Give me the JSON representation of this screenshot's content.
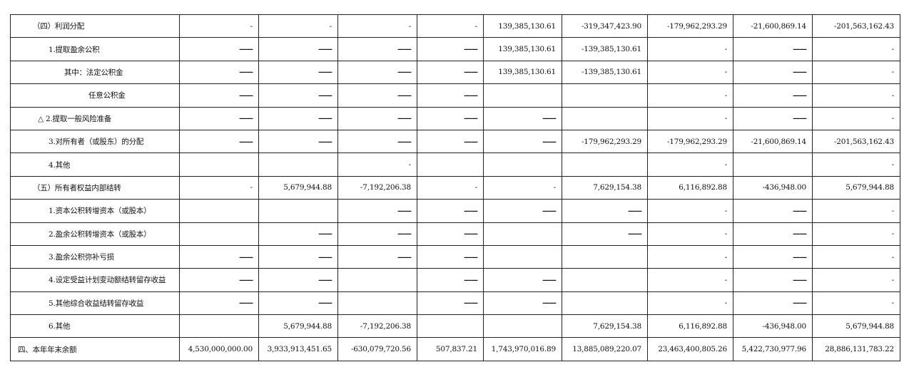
{
  "rows": [
    {
      "label": "（四）利润分配",
      "indent": "i5",
      "cells": [
        "-",
        "-",
        "-",
        "-",
        "139,385,130.61",
        "-319,347,423.90",
        "-179,962,293.29",
        "-21,600,869.14",
        "-201,563,162.43"
      ]
    },
    {
      "label": "1.提取盈余公积",
      "indent": "i1",
      "cells": [
        "——",
        "——",
        "——",
        "——",
        "139,385,130.61",
        "-139,385,130.61",
        "-",
        "——",
        "-"
      ]
    },
    {
      "label": "其中：法定公积金",
      "indent": "i2",
      "cells": [
        "——",
        "——",
        "——",
        "——",
        "139,385,130.61",
        "-139,385,130.61",
        "-",
        "——",
        "-"
      ]
    },
    {
      "label": "任意公积金",
      "indent": "i4",
      "cells": [
        "——",
        "——",
        "——",
        "——",
        "",
        "",
        "-",
        "——",
        "-"
      ]
    },
    {
      "label": "△ 2.提取一般风险准备",
      "indent": "i5b",
      "cells": [
        "——",
        "——",
        "——",
        "——",
        "——",
        "",
        "-",
        "——",
        "-"
      ]
    },
    {
      "label": "3.对所有者（或股东）的分配",
      "indent": "i1",
      "cells": [
        "——",
        "——",
        "——",
        "——",
        "——",
        "-179,962,293.29",
        "-179,962,293.29",
        "-21,600,869.14",
        "-201,563,162.43"
      ]
    },
    {
      "label": "4.其他",
      "indent": "i1",
      "cells": [
        "",
        "",
        "-",
        "",
        "",
        "",
        "-",
        "",
        "-"
      ]
    },
    {
      "label": "（五）所有者权益内部结转",
      "indent": "i5",
      "cells": [
        "-",
        "5,679,944.88",
        "-7,192,206.38",
        "-",
        "-",
        "7,629,154.38",
        "6,116,892.88",
        "-436,948.00",
        "5,679,944.88"
      ]
    },
    {
      "label": "1.资本公积转增资本（或股本）",
      "indent": "i1",
      "cells": [
        "",
        "",
        "——",
        "——",
        "——",
        "——",
        "-",
        "——",
        "-"
      ]
    },
    {
      "label": "2.盈余公积转增资本（或股本）",
      "indent": "i1",
      "cells": [
        "",
        "——",
        "——",
        "——",
        "",
        "——",
        "-",
        "——",
        "-"
      ]
    },
    {
      "label": "3.盈余公积弥补亏损",
      "indent": "i1",
      "cells": [
        "——",
        "——",
        "——",
        "——",
        "",
        "",
        "-",
        "——",
        "-"
      ]
    },
    {
      "label": "4.设定受益计划变动额结转留存收益",
      "indent": "i1",
      "cells": [
        "——",
        "——",
        "",
        "——",
        "——",
        "",
        "-",
        "——",
        "-"
      ]
    },
    {
      "label": "5.其他综合收益结转留存收益",
      "indent": "i1",
      "cells": [
        "——",
        "——",
        "",
        "——",
        "——",
        "",
        "-",
        "——",
        "-"
      ]
    },
    {
      "label": "6.其他",
      "indent": "i1",
      "cells": [
        "",
        "5,679,944.88",
        "-7,192,206.38",
        "",
        "",
        "7,629,154.38",
        "6,116,892.88",
        "-436,948.00",
        "5,679,944.88"
      ]
    },
    {
      "label": "四、本年年末余额",
      "indent": "i0",
      "cells": [
        "4,530,000,000.00",
        "3,933,913,451.65",
        "-630,079,720.56",
        "507,837.21",
        "1,743,970,016.89",
        "13,885,089,220.07",
        "23,463,400,805.26",
        "5,422,730,977.96",
        "28,886,131,783.22"
      ]
    }
  ]
}
